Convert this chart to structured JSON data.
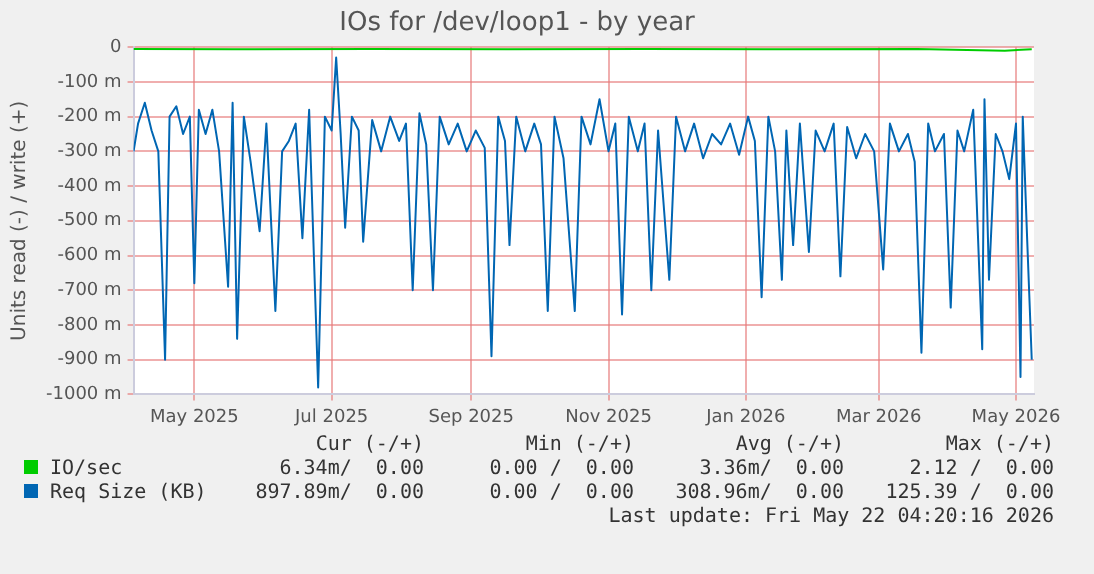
{
  "chart_data": {
    "type": "line",
    "title": "IOs for /dev/loop1 - by year",
    "ylabel": "Units read (-) / write (+)",
    "xlim": [
      "2025-04-18",
      "2026-05-23"
    ],
    "xticks": [
      {
        "value": "2025-05-15",
        "label": "May 2025"
      },
      {
        "value": "2025-07-15",
        "label": "Jul 2025"
      },
      {
        "value": "2025-09-15",
        "label": "Sep 2025"
      },
      {
        "value": "2025-11-15",
        "label": "Nov 2025"
      },
      {
        "value": "2026-01-15",
        "label": "Jan 2026"
      },
      {
        "value": "2026-03-15",
        "label": "Mar 2026"
      },
      {
        "value": "2026-05-15",
        "label": "May 2026"
      }
    ],
    "ylim": [
      -1000,
      0
    ],
    "yticks": [
      {
        "value": 0,
        "label": "0"
      },
      {
        "value": -100,
        "label": "-100 m"
      },
      {
        "value": -200,
        "label": "-200 m"
      },
      {
        "value": -300,
        "label": "-300 m"
      },
      {
        "value": -400,
        "label": "-400 m"
      },
      {
        "value": -500,
        "label": "-500 m"
      },
      {
        "value": -600,
        "label": "-600 m"
      },
      {
        "value": -700,
        "label": "-700 m"
      },
      {
        "value": -800,
        "label": "-800 m"
      },
      {
        "value": -900,
        "label": "-900 m"
      },
      {
        "value": -1000,
        "label": "-1000 m"
      }
    ],
    "grid": true,
    "legend": "bottom",
    "marker": "none",
    "line_style": "solid",
    "series": [
      {
        "name": "IO/sec",
        "color": "#00cc00",
        "x": [
          "2025-04-18",
          "2025-06-01",
          "2025-08-01",
          "2025-10-01",
          "2025-12-01",
          "2026-02-01",
          "2026-04-01",
          "2026-05-10",
          "2026-05-22"
        ],
        "values": [
          -5,
          -6,
          -5,
          -6,
          -5,
          -6,
          -5,
          -10,
          -6
        ]
      },
      {
        "name": "Req Size (KB)",
        "color": "#0066b3",
        "x": [
          "2025-04-18",
          "2025-04-20",
          "2025-04-23",
          "2025-04-26",
          "2025-04-29",
          "2025-05-02",
          "2025-05-04",
          "2025-05-07",
          "2025-05-10",
          "2025-05-13",
          "2025-05-15",
          "2025-05-17",
          "2025-05-20",
          "2025-05-23",
          "2025-05-26",
          "2025-05-30",
          "2025-06-01",
          "2025-06-03",
          "2025-06-06",
          "2025-06-09",
          "2025-06-13",
          "2025-06-16",
          "2025-06-20",
          "2025-06-23",
          "2025-06-26",
          "2025-06-29",
          "2025-07-02",
          "2025-07-05",
          "2025-07-09",
          "2025-07-12",
          "2025-07-15",
          "2025-07-17",
          "2025-07-19",
          "2025-07-21",
          "2025-07-24",
          "2025-07-27",
          "2025-07-29",
          "2025-08-02",
          "2025-08-06",
          "2025-08-10",
          "2025-08-14",
          "2025-08-17",
          "2025-08-20",
          "2025-08-23",
          "2025-08-26",
          "2025-08-29",
          "2025-09-01",
          "2025-09-05",
          "2025-09-09",
          "2025-09-13",
          "2025-09-17",
          "2025-09-21",
          "2025-09-24",
          "2025-09-27",
          "2025-09-30",
          "2025-10-02",
          "2025-10-05",
          "2025-10-09",
          "2025-10-13",
          "2025-10-16",
          "2025-10-19",
          "2025-10-22",
          "2025-10-26",
          "2025-10-31",
          "2025-11-03",
          "2025-11-07",
          "2025-11-11",
          "2025-11-15",
          "2025-11-18",
          "2025-11-21",
          "2025-11-24",
          "2025-11-28",
          "2025-12-01",
          "2025-12-04",
          "2025-12-07",
          "2025-12-12",
          "2025-12-15",
          "2025-12-19",
          "2025-12-23",
          "2025-12-27",
          "2025-12-31",
          "2026-01-04",
          "2026-01-08",
          "2026-01-12",
          "2026-01-16",
          "2026-01-19",
          "2026-01-22",
          "2026-01-25",
          "2026-01-28",
          "2026-01-31",
          "2026-02-02",
          "2026-02-05",
          "2026-02-08",
          "2026-02-12",
          "2026-02-15",
          "2026-02-19",
          "2026-02-23",
          "2026-02-26",
          "2026-03-01",
          "2026-03-05",
          "2026-03-09",
          "2026-03-13",
          "2026-03-17",
          "2026-03-20",
          "2026-03-24",
          "2026-03-28",
          "2026-03-31",
          "2026-04-03",
          "2026-04-06",
          "2026-04-09",
          "2026-04-13",
          "2026-04-16",
          "2026-04-19",
          "2026-04-22",
          "2026-04-26",
          "2026-04-30",
          "2026-05-01",
          "2026-05-03",
          "2026-05-06",
          "2026-05-09",
          "2026-05-12",
          "2026-05-15",
          "2026-05-17",
          "2026-05-18",
          "2026-05-20",
          "2026-05-22"
        ],
        "values": [
          -300,
          -220,
          -160,
          -240,
          -300,
          -900,
          -200,
          -170,
          -250,
          -200,
          -680,
          -180,
          -250,
          -180,
          -300,
          -690,
          -160,
          -840,
          -200,
          -330,
          -530,
          -220,
          -760,
          -300,
          -270,
          -220,
          -550,
          -180,
          -980,
          -200,
          -240,
          -30,
          -250,
          -520,
          -200,
          -240,
          -560,
          -210,
          -300,
          -200,
          -270,
          -220,
          -700,
          -190,
          -280,
          -700,
          -200,
          -280,
          -220,
          -300,
          -240,
          -290,
          -890,
          -200,
          -270,
          -570,
          -200,
          -300,
          -220,
          -280,
          -760,
          -200,
          -320,
          -760,
          -200,
          -280,
          -150,
          -300,
          -220,
          -770,
          -200,
          -300,
          -220,
          -700,
          -240,
          -670,
          -200,
          -300,
          -220,
          -320,
          -250,
          -280,
          -220,
          -310,
          -200,
          -270,
          -720,
          -200,
          -300,
          -670,
          -240,
          -570,
          -220,
          -590,
          -240,
          -300,
          -220,
          -660,
          -230,
          -320,
          -250,
          -300,
          -640,
          -220,
          -300,
          -250,
          -330,
          -880,
          -220,
          -300,
          -250,
          -750,
          -240,
          -300,
          -180,
          -870,
          -150,
          -670,
          -250,
          -300,
          -380,
          -220,
          -950,
          -200,
          -560,
          -900
        ]
      }
    ],
    "annotations": [
      "Cur (-/+)",
      "Min (-/+)",
      "Avg (-/+)",
      "Max (-/+)",
      "6.34m/  0.00",
      "0.00 /  0.00",
      "3.36m/  0.00",
      "2.12 /  0.00",
      "897.89m/  0.00",
      "0.00 /  0.00",
      "308.96m/  0.00",
      "125.39 /  0.00",
      "Last update: Fri May 22 04:20:16 2026"
    ]
  }
}
